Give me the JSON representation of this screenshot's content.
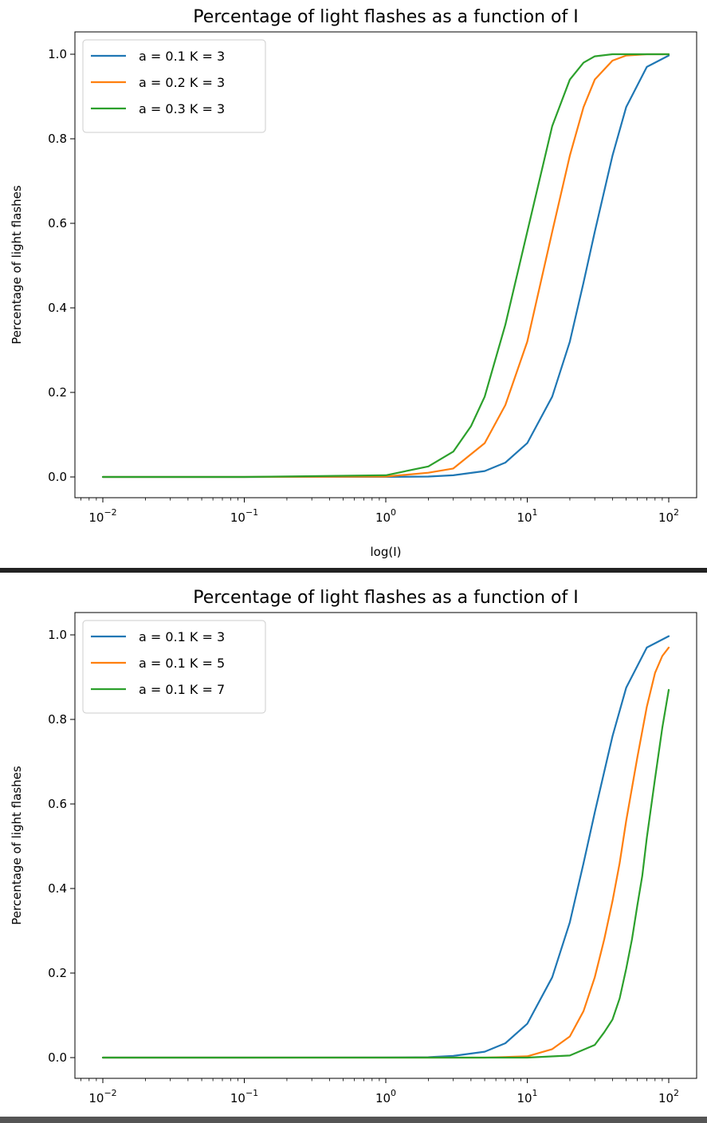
{
  "colors": {
    "series1": "#1f77b4",
    "series2": "#ff7f0e",
    "series3": "#2ca02c",
    "separator": "#222222",
    "bottom_bar": "#555555"
  },
  "chart_data": [
    {
      "type": "line",
      "title": "Percentage of light flashes as a function of I",
      "xlabel": "log(I)",
      "ylabel": "Percentage of light flashes",
      "xscale": "log",
      "xlim": [
        0.01,
        100
      ],
      "ylim": [
        0.0,
        1.0
      ],
      "grid": false,
      "legend_position": "upper-left",
      "xtick_labels": [
        {
          "base": "10",
          "exp": "−2"
        },
        {
          "base": "10",
          "exp": "−1"
        },
        {
          "base": "10",
          "exp": "0"
        },
        {
          "base": "10",
          "exp": "1"
        },
        {
          "base": "10",
          "exp": "2"
        }
      ],
      "ytick_labels": [
        "0.0",
        "0.2",
        "0.4",
        "0.6",
        "0.8",
        "1.0"
      ],
      "series": [
        {
          "name": "a = 0.1 K = 3",
          "color": "#1f77b4",
          "x": [
            0.01,
            0.1,
            1,
            2,
            3,
            5,
            7,
            10,
            15,
            20,
            25,
            30,
            40,
            50,
            70,
            100
          ],
          "y": [
            0.0,
            0.0,
            0.0002,
            0.001,
            0.004,
            0.014,
            0.034,
            0.08,
            0.19,
            0.32,
            0.46,
            0.58,
            0.76,
            0.875,
            0.97,
            0.997
          ]
        },
        {
          "name": "a = 0.2 K = 3",
          "color": "#ff7f0e",
          "x": [
            0.01,
            0.1,
            1,
            2,
            3,
            5,
            7,
            10,
            15,
            20,
            25,
            30,
            40,
            50,
            70,
            100
          ],
          "y": [
            0.0,
            0.0,
            0.001,
            0.01,
            0.02,
            0.08,
            0.17,
            0.32,
            0.58,
            0.76,
            0.875,
            0.94,
            0.985,
            0.997,
            1.0,
            1.0
          ]
        },
        {
          "name": "a = 0.3 K = 3",
          "color": "#2ca02c",
          "x": [
            0.01,
            0.1,
            1,
            2,
            3,
            4,
            5,
            7,
            10,
            15,
            20,
            25,
            30,
            40,
            50,
            70,
            100
          ],
          "y": [
            0.0,
            0.0,
            0.004,
            0.025,
            0.06,
            0.12,
            0.19,
            0.36,
            0.58,
            0.83,
            0.94,
            0.98,
            0.995,
            1.0,
            1.0,
            1.0,
            1.0
          ]
        }
      ]
    },
    {
      "type": "line",
      "title": "Percentage of light flashes as a function of I",
      "xlabel": "",
      "ylabel": "Percentage of light flashes",
      "xscale": "log",
      "xlim": [
        0.01,
        100
      ],
      "ylim": [
        0.0,
        1.0
      ],
      "grid": false,
      "legend_position": "upper-left",
      "xtick_labels": [
        {
          "base": "10",
          "exp": "−2"
        },
        {
          "base": "10",
          "exp": "−1"
        },
        {
          "base": "10",
          "exp": "0"
        },
        {
          "base": "10",
          "exp": "1"
        },
        {
          "base": "10",
          "exp": "2"
        }
      ],
      "ytick_labels": [
        "0.0",
        "0.2",
        "0.4",
        "0.6",
        "0.8",
        "1.0"
      ],
      "series": [
        {
          "name": "a = 0.1 K = 3",
          "color": "#1f77b4",
          "x": [
            0.01,
            0.1,
            1,
            2,
            3,
            5,
            7,
            10,
            15,
            20,
            25,
            30,
            40,
            50,
            70,
            100
          ],
          "y": [
            0.0,
            0.0,
            0.0002,
            0.001,
            0.004,
            0.014,
            0.034,
            0.08,
            0.19,
            0.32,
            0.46,
            0.58,
            0.76,
            0.875,
            0.97,
            0.997
          ]
        },
        {
          "name": "a = 0.1 K = 5",
          "color": "#ff7f0e",
          "x": [
            0.01,
            0.1,
            1,
            5,
            10,
            15,
            20,
            25,
            30,
            35,
            40,
            45,
            50,
            60,
            70,
            80,
            90,
            100
          ],
          "y": [
            0.0,
            0.0,
            0.0,
            0.0,
            0.003,
            0.02,
            0.05,
            0.11,
            0.19,
            0.28,
            0.37,
            0.46,
            0.56,
            0.71,
            0.83,
            0.91,
            0.95,
            0.97
          ]
        },
        {
          "name": "a = 0.1 K = 7",
          "color": "#2ca02c",
          "x": [
            0.01,
            0.1,
            1,
            10,
            20,
            30,
            35,
            40,
            45,
            50,
            55,
            60,
            65,
            70,
            80,
            90,
            100
          ],
          "y": [
            0.0,
            0.0,
            0.0,
            0.0,
            0.005,
            0.03,
            0.06,
            0.09,
            0.14,
            0.21,
            0.28,
            0.36,
            0.43,
            0.52,
            0.66,
            0.78,
            0.87
          ]
        }
      ]
    }
  ]
}
